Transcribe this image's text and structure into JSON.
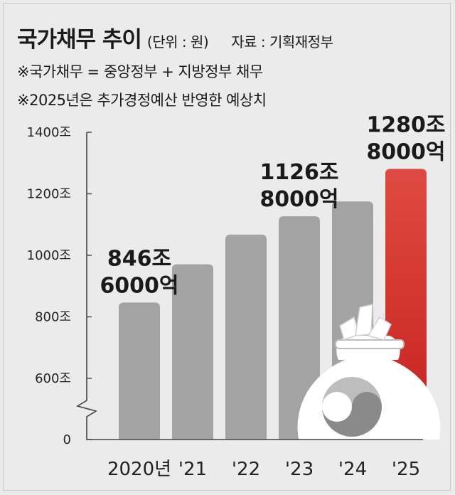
{
  "header": {
    "title": "국가채무 추이",
    "unit": "(단위 : 원)",
    "source": "자료 : 기획재정부",
    "notes": [
      "※국가채무 = 중앙정부 + 지방정부 채무",
      "※2025년은 추가경정예산 반영한 예상치"
    ]
  },
  "chart_data": {
    "type": "bar",
    "categories": [
      "2020년",
      "'21",
      "'22",
      "'23",
      "'24",
      "'25"
    ],
    "values": [
      846.6,
      970.7,
      1067.4,
      1126.8,
      1175.2,
      1280.8
    ],
    "ylim": [
      0,
      1400
    ],
    "yticks": [
      {
        "value": 0,
        "label": "0"
      },
      {
        "value": 600,
        "label": "600조"
      },
      {
        "value": 800,
        "label": "800조"
      },
      {
        "value": 1000,
        "label": "1000조"
      },
      {
        "value": 1200,
        "label": "1200조"
      },
      {
        "value": 1400,
        "label": "1400조"
      }
    ],
    "axis_break": "between 0 and 600조",
    "grid": false,
    "data_labels": [
      {
        "index": 0,
        "lines": [
          "846조",
          "6000억"
        ]
      },
      {
        "index": 3,
        "lines": [
          "1126조",
          "8000억"
        ]
      },
      {
        "index": 5,
        "lines": [
          "1280조",
          "8000억"
        ]
      }
    ],
    "colors": {
      "bar": "#a3a3a3",
      "highlight_bar_top": "#e04a43",
      "highlight_bar_bottom": "#c5211e",
      "axis": "#444444"
    }
  }
}
